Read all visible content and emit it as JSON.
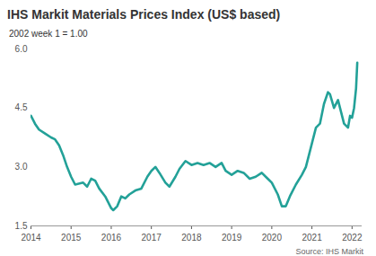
{
  "chart_data": {
    "type": "line",
    "title": "IHS Markit Materials Prices Index (US$ based)",
    "subtitle": "2002 week 1 = 1.00",
    "caption": "Source: IHS Markit",
    "color": "#23a198",
    "grid": false,
    "x": [
      2014.0,
      2014.1,
      2014.2,
      2014.35,
      2014.5,
      2014.6,
      2014.7,
      2014.8,
      2014.9,
      2015.0,
      2015.1,
      2015.3,
      2015.4,
      2015.5,
      2015.6,
      2015.7,
      2015.85,
      2016.0,
      2016.05,
      2016.15,
      2016.25,
      2016.35,
      2016.45,
      2016.6,
      2016.75,
      2016.9,
      2017.0,
      2017.1,
      2017.2,
      2017.35,
      2017.45,
      2017.6,
      2017.7,
      2017.85,
      2018.0,
      2018.15,
      2018.3,
      2018.45,
      2018.6,
      2018.75,
      2018.85,
      2019.0,
      2019.15,
      2019.3,
      2019.45,
      2019.6,
      2019.75,
      2019.9,
      2020.0,
      2020.15,
      2020.25,
      2020.35,
      2020.45,
      2020.6,
      2020.75,
      2020.85,
      2021.0,
      2021.1,
      2021.2,
      2021.3,
      2021.4,
      2021.45,
      2021.55,
      2021.65,
      2021.75,
      2021.8,
      2021.9,
      2021.95,
      2022.0,
      2022.05,
      2022.1,
      2022.13
    ],
    "values": [
      4.3,
      4.1,
      3.95,
      3.85,
      3.75,
      3.7,
      3.55,
      3.3,
      3.0,
      2.75,
      2.55,
      2.6,
      2.5,
      2.7,
      2.65,
      2.45,
      2.25,
      1.95,
      1.9,
      2.0,
      2.25,
      2.2,
      2.3,
      2.4,
      2.45,
      2.75,
      2.9,
      3.0,
      2.85,
      2.6,
      2.5,
      2.75,
      2.95,
      3.15,
      3.05,
      3.1,
      3.05,
      3.1,
      3.0,
      3.1,
      2.9,
      2.8,
      2.9,
      2.85,
      2.7,
      2.75,
      2.85,
      2.7,
      2.6,
      2.3,
      2.0,
      2.0,
      2.25,
      2.55,
      2.8,
      3.0,
      3.6,
      4.0,
      4.1,
      4.6,
      4.9,
      4.85,
      4.5,
      4.7,
      4.3,
      4.1,
      4.0,
      4.3,
      4.25,
      4.5,
      5.0,
      5.65
    ],
    "xlim": [
      2014,
      2022.25
    ],
    "xticks": [
      2014,
      2015,
      2016,
      2017,
      2018,
      2019,
      2020,
      2021,
      2022
    ],
    "ylim": [
      1.5,
      6.0
    ],
    "yticks": [
      1.5,
      {
        "value": 3,
        "label": "3.0"
      },
      4.5,
      {
        "value": 6,
        "label": "6.0"
      }
    ]
  }
}
